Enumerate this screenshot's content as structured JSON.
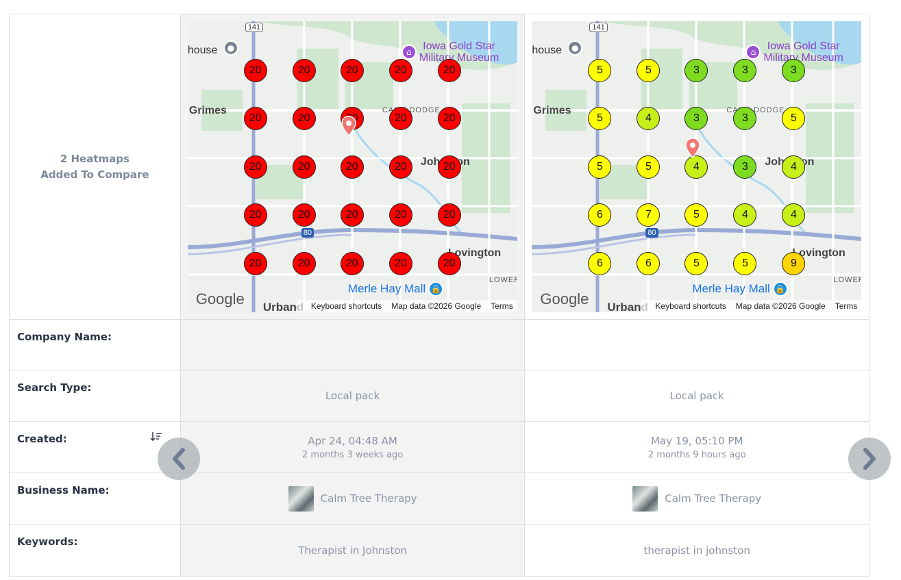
{
  "header_label": {
    "line1": "2 Heatmaps",
    "line2": "Added To Compare"
  },
  "rows": {
    "company_name": "Company Name:",
    "search_type": "Search Type:",
    "created": "Created:",
    "business_name": "Business Name:",
    "keywords": "Keywords:"
  },
  "heatmaps": [
    {
      "company_name": "",
      "search_type": "Local pack",
      "created_date": "Apr 24, 04:48 AM",
      "created_ago": "2 months 3 weeks ago",
      "business_name": "Calm Tree Therapy",
      "keywords": "Therapist in Johnston",
      "grid": [
        [
          20,
          20,
          20,
          20,
          20
        ],
        [
          20,
          20,
          20,
          20,
          20
        ],
        [
          20,
          20,
          20,
          20,
          20
        ],
        [
          20,
          20,
          20,
          20,
          20
        ],
        [
          20,
          20,
          20,
          20,
          20
        ]
      ]
    },
    {
      "company_name": "",
      "search_type": "Local pack",
      "created_date": "May 19, 05:10 PM",
      "created_ago": "2 months 9 hours ago",
      "business_name": "Calm Tree Therapy",
      "keywords": "therapist in johnston",
      "grid": [
        [
          5,
          5,
          3,
          3,
          3
        ],
        [
          5,
          4,
          3,
          3,
          5
        ],
        [
          5,
          5,
          4,
          3,
          4
        ],
        [
          6,
          7,
          5,
          4,
          4
        ],
        [
          6,
          6,
          5,
          5,
          9
        ]
      ]
    }
  ],
  "rank_colors": {
    "3": "#7ddc1f",
    "4": "#c8ef1a",
    "5": "#ffff00",
    "6": "#ffff00",
    "7": "#ffff00",
    "9": "#ffd400",
    "20": "#ff0000"
  },
  "map_labels": {
    "museum_line1": "Iowa Gold Star",
    "museum_line2": "Military Museum",
    "grimes": "Grimes",
    "camp_dodge": "CAMP DODGE",
    "johnston": "Johnston",
    "lovington": "Lovington",
    "merle_hay": "Merle Hay Mall",
    "lower": "LOWER",
    "urbandale": "Urband",
    "house": "house",
    "route_141": "141",
    "route_80": "80",
    "google": "Google",
    "shortcuts": "Keyboard shortcuts",
    "mapdata": "Map data ©2026 Google",
    "terms": "Terms"
  },
  "icons": {
    "sort": "sort-descending-icon",
    "prev": "chevron-left-icon",
    "next": "chevron-right-icon"
  }
}
